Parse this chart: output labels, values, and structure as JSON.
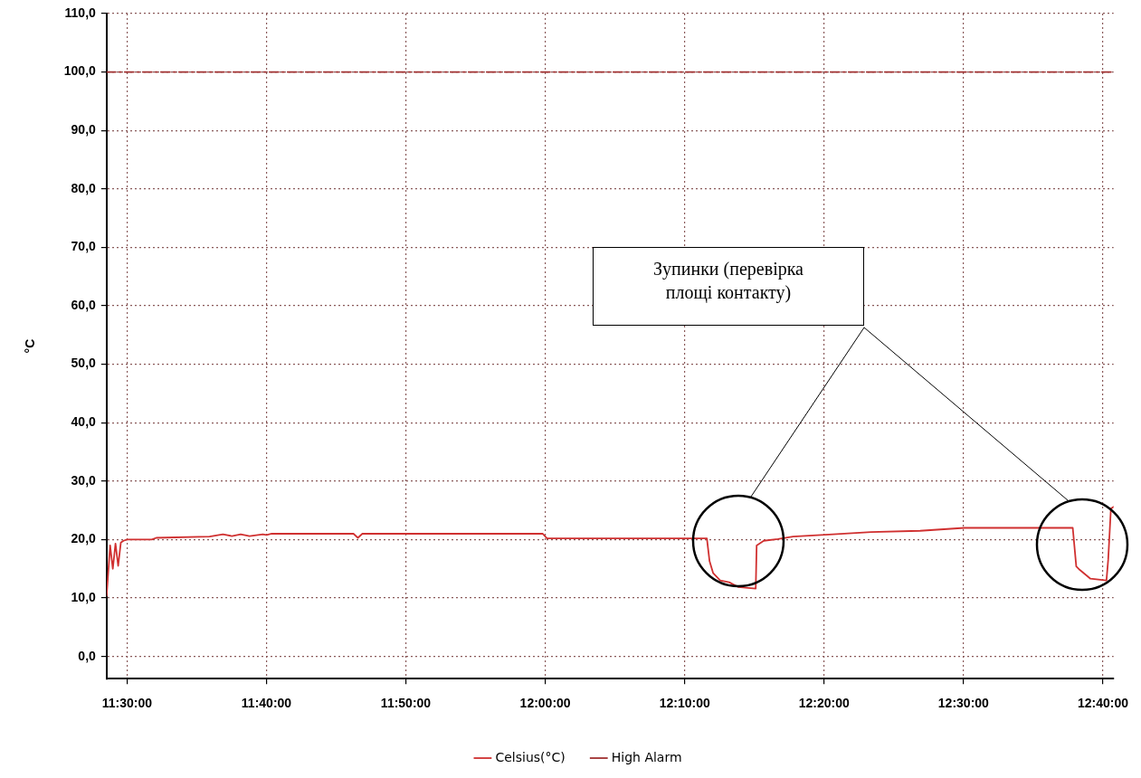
{
  "chart_data": {
    "type": "line",
    "ylabel": "°C",
    "xlim": [
      11.4756,
      12.6794
    ],
    "xticks": [
      {
        "value": 11.5,
        "label": "11:30:00"
      },
      {
        "value": 11.6667,
        "label": "11:40:00"
      },
      {
        "value": 11.8333,
        "label": "11:50:00"
      },
      {
        "value": 12,
        "label": "12:00:00"
      },
      {
        "value": 12.1667,
        "label": "12:10:00"
      },
      {
        "value": 12.3333,
        "label": "12:20:00"
      },
      {
        "value": 12.5,
        "label": "12:30:00"
      },
      {
        "value": 12.6667,
        "label": "12:40:00"
      }
    ],
    "ylim": [
      -3.8,
      110
    ],
    "yticks": [
      {
        "value": 0,
        "label": "0,0"
      },
      {
        "value": 10,
        "label": "10,0"
      },
      {
        "value": 20,
        "label": "20,0"
      },
      {
        "value": 30,
        "label": "30,0"
      },
      {
        "value": 40,
        "label": "40,0"
      },
      {
        "value": 50,
        "label": "50,0"
      },
      {
        "value": 60,
        "label": "60,0"
      },
      {
        "value": 70,
        "label": "70,0"
      },
      {
        "value": 80,
        "label": "80,0"
      },
      {
        "value": 90,
        "label": "90,0"
      },
      {
        "value": 100,
        "label": "100,0"
      },
      {
        "value": 110,
        "label": "110,0"
      }
    ],
    "grid": true,
    "legend": "bottom",
    "line_style": "solid",
    "marker": "none",
    "series": [
      {
        "name": "Celsius(°C)",
        "color": "#d03030",
        "x": [
          11.4756,
          11.4798,
          11.483,
          11.4862,
          11.4894,
          11.4926,
          11.4958,
          11.5,
          11.5297,
          11.535,
          11.5987,
          11.6147,
          11.6253,
          11.6359,
          11.6465,
          11.6624,
          11.6667,
          11.673,
          11.7707,
          11.776,
          11.7813,
          11.9968,
          12.0021,
          12.1932,
          12.1964,
          12.2006,
          12.2091,
          12.2198,
          12.2304,
          12.2516,
          12.2527,
          12.2612,
          12.2781,
          12.2962,
          12.344,
          12.3896,
          12.448,
          12.5011,
          12.6306,
          12.6348,
          12.6391,
          12.6518,
          12.6709,
          12.673,
          12.6762,
          12.6794
        ],
        "values": [
          10.4,
          19,
          15,
          19.3,
          15.5,
          19.5,
          19.8,
          20,
          20,
          20.3,
          20.5,
          20.9,
          20.6,
          20.9,
          20.6,
          20.9,
          20.8,
          21,
          21,
          20.3,
          21,
          21,
          20.2,
          20.2,
          16.3,
          14.3,
          13,
          12.7,
          11.9,
          11.6,
          19,
          19.8,
          20.1,
          20.5,
          20.9,
          21.3,
          21.5,
          22,
          22,
          15.4,
          14.8,
          13.3,
          13,
          16.6,
          25.3,
          25.6
        ]
      },
      {
        "name": "High Alarm",
        "color": "#a03030",
        "line_style": "dashed",
        "x": [
          11.4756,
          12.6794
        ],
        "values": [
          100,
          100
        ]
      }
    ],
    "annotations": [
      "Зупинки (перевірка площі контакту)"
    ]
  }
}
